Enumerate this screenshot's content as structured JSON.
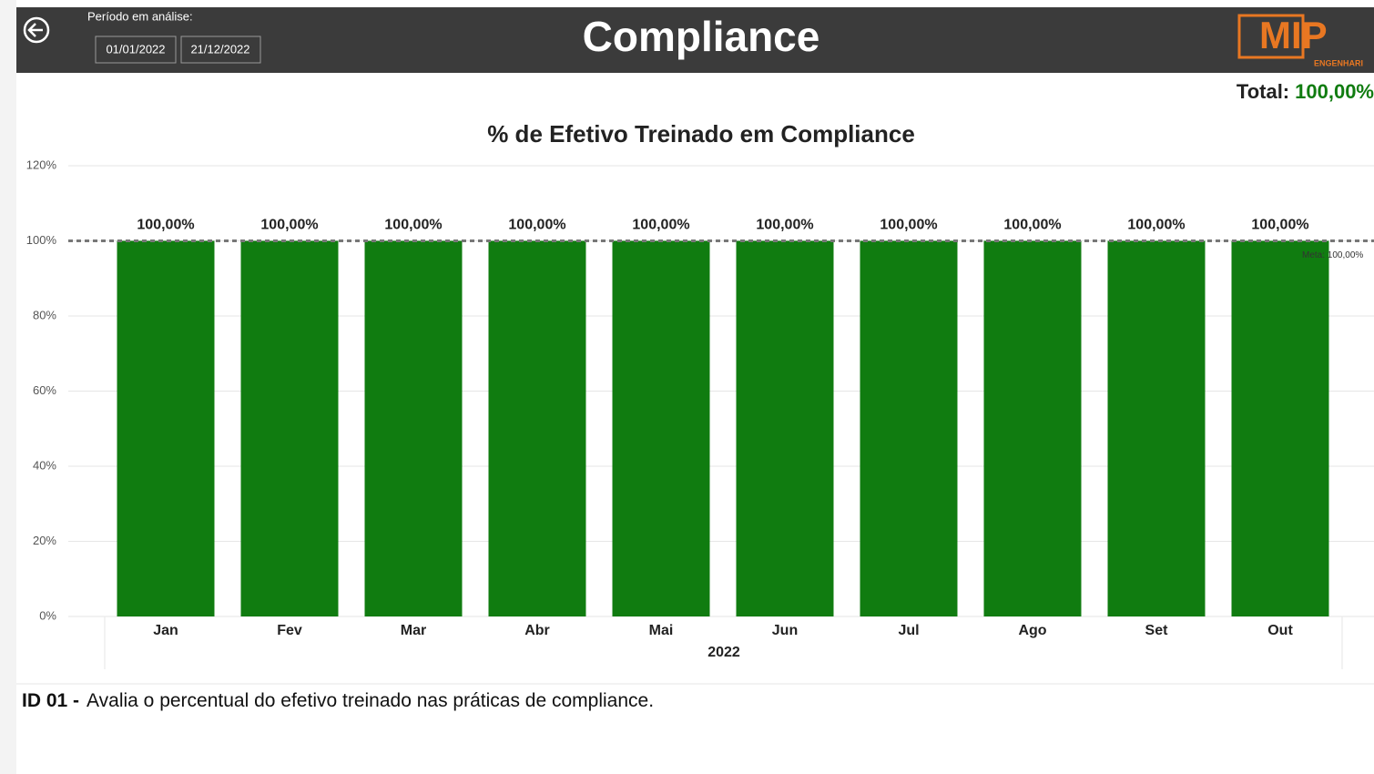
{
  "header": {
    "period_label": "Período em análise:",
    "start_date": "01/01/2022",
    "end_date": "21/12/2022",
    "title": "Compliance",
    "logo": "MIP",
    "logo_sub": "ENGENHARI"
  },
  "total": {
    "label": "Total:",
    "value": "100,00%"
  },
  "chart_data": {
    "type": "bar",
    "title": "% de Efetivo Treinado em Compliance",
    "categories": [
      "Jan",
      "Fev",
      "Mar",
      "Abr",
      "Mai",
      "Jun",
      "Jul",
      "Ago",
      "Set",
      "Out"
    ],
    "values": [
      100,
      100,
      100,
      100,
      100,
      100,
      100,
      100,
      100,
      100
    ],
    "value_labels": [
      "100,00%",
      "100,00%",
      "100,00%",
      "100,00%",
      "100,00%",
      "100,00%",
      "100,00%",
      "100,00%",
      "100,00%",
      "100,00%"
    ],
    "color": "#107c10",
    "x_group": "2022",
    "reference_line": {
      "value": 100,
      "label": "Meta: 100,00%"
    },
    "ylim": [
      0,
      120
    ],
    "yticks": [
      {
        "value": 0,
        "label": "0%"
      },
      {
        "value": 20,
        "label": "20%"
      },
      {
        "value": 40,
        "label": "40%"
      },
      {
        "value": 60,
        "label": "60%"
      },
      {
        "value": 80,
        "label": "80%"
      },
      {
        "value": 100,
        "label": "100%"
      },
      {
        "value": 120,
        "label": "120%"
      }
    ],
    "grid": true
  },
  "footer": {
    "id": "ID 01 -",
    "text": "Avalia o percentual do efetivo treinado nas práticas de compliance."
  }
}
